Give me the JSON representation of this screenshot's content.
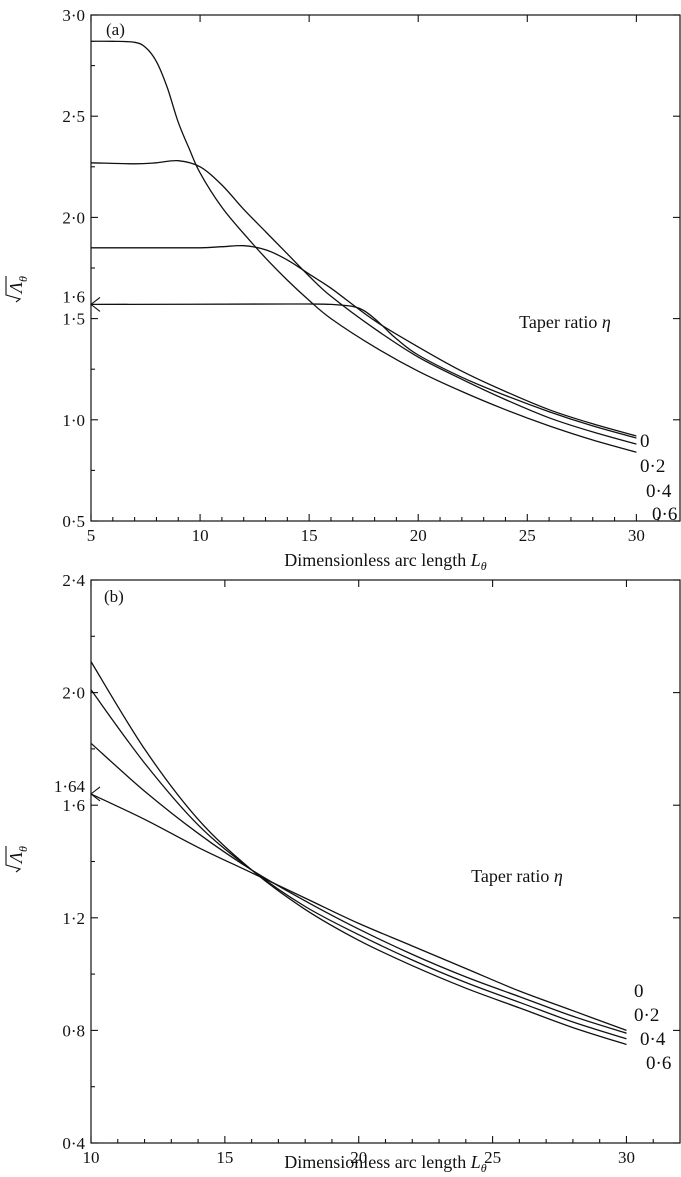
{
  "chart_data": [
    {
      "panel_label": "(a)",
      "type": "line",
      "xlabel": "Dimensionless arc length",
      "xlabel_symbol": "L",
      "xlabel_subscript": "θ",
      "ylabel_symbol": "Λ",
      "ylabel_subscript": "θ",
      "xlim": [
        5,
        32
      ],
      "ylim": [
        0.5,
        3.0
      ],
      "xticks": [
        5,
        10,
        15,
        20,
        25,
        30
      ],
      "xtick_labels": [
        "5",
        "10",
        "15",
        "20",
        "25",
        "30"
      ],
      "yticks": [
        0.5,
        1.0,
        1.5,
        2.0,
        2.5,
        3.0
      ],
      "ytick_labels": [
        "0·5",
        "1·0",
        "1·5",
        "2·0",
        "2·5",
        "3·0"
      ],
      "marker": {
        "label": "1·6",
        "value": 1.57
      },
      "annotation": {
        "text": "Taper ratio",
        "symbol": "η"
      },
      "series": [
        {
          "name": "0",
          "x": [
            5,
            14,
            15,
            16,
            17,
            17.5,
            18,
            18.5,
            19,
            20,
            22,
            24,
            26,
            28,
            30
          ],
          "y": [
            1.57,
            1.572,
            1.572,
            1.57,
            1.56,
            1.54,
            1.5,
            1.45,
            1.4,
            1.32,
            1.21,
            1.12,
            1.04,
            0.97,
            0.91
          ]
        },
        {
          "name": "0·2",
          "x": [
            5,
            8,
            10,
            11,
            12,
            13,
            14,
            15,
            16,
            18,
            20,
            22,
            24,
            26,
            28,
            30
          ],
          "y": [
            1.85,
            1.85,
            1.85,
            1.855,
            1.86,
            1.84,
            1.79,
            1.72,
            1.65,
            1.49,
            1.36,
            1.24,
            1.14,
            1.05,
            0.98,
            0.92
          ]
        },
        {
          "name": "0·4",
          "x": [
            5,
            7,
            8,
            9,
            10,
            11,
            12,
            13,
            14,
            15,
            16,
            18,
            20,
            22,
            24,
            26,
            28,
            30
          ],
          "y": [
            2.27,
            2.265,
            2.27,
            2.28,
            2.25,
            2.16,
            2.04,
            1.93,
            1.82,
            1.71,
            1.61,
            1.45,
            1.31,
            1.2,
            1.1,
            1.01,
            0.94,
            0.88
          ]
        },
        {
          "name": "0·6",
          "x": [
            5,
            6,
            7,
            7.5,
            8,
            8.5,
            9,
            9.5,
            10,
            11,
            12,
            13,
            14,
            15,
            16,
            18,
            20,
            22,
            24,
            26,
            28,
            30
          ],
          "y": [
            2.87,
            2.87,
            2.865,
            2.84,
            2.77,
            2.64,
            2.47,
            2.34,
            2.22,
            2.05,
            1.92,
            1.8,
            1.69,
            1.59,
            1.5,
            1.36,
            1.24,
            1.14,
            1.05,
            0.97,
            0.9,
            0.84
          ]
        }
      ],
      "end_labels": [
        "0",
        "0·2",
        "0·4",
        "0·6"
      ]
    },
    {
      "panel_label": "(b)",
      "type": "line",
      "xlabel": "Dimensionless arc length",
      "xlabel_symbol": "L",
      "xlabel_subscript": "θ",
      "ylabel_symbol": "Λ",
      "ylabel_subscript": "θ",
      "xlim": [
        10,
        32
      ],
      "ylim": [
        0.4,
        2.4
      ],
      "xticks": [
        10,
        15,
        20,
        25,
        30
      ],
      "xtick_labels": [
        "10",
        "15",
        "20",
        "25",
        "30"
      ],
      "yticks": [
        0.4,
        0.8,
        1.2,
        1.6,
        2.0,
        2.4
      ],
      "ytick_labels": [
        "0·4",
        "0·8",
        "1·2",
        "1·6",
        "2·0",
        "2·4"
      ],
      "marker": {
        "label": "1·64",
        "value": 1.64
      },
      "annotation": {
        "text": "Taper ratio",
        "symbol": "η"
      },
      "series": [
        {
          "name": "0",
          "x": [
            10,
            12,
            14,
            16,
            18,
            20,
            22,
            24,
            26,
            28,
            30
          ],
          "y": [
            1.64,
            1.55,
            1.45,
            1.36,
            1.27,
            1.18,
            1.1,
            1.02,
            0.94,
            0.87,
            0.8
          ]
        },
        {
          "name": "0·2",
          "x": [
            10,
            12,
            14,
            16,
            18,
            20,
            22,
            24,
            26,
            28,
            30
          ],
          "y": [
            1.82,
            1.65,
            1.5,
            1.37,
            1.26,
            1.16,
            1.07,
            0.99,
            0.92,
            0.85,
            0.79
          ]
        },
        {
          "name": "0·4",
          "x": [
            10,
            12,
            14,
            16,
            18,
            20,
            22,
            24,
            26,
            28,
            30
          ],
          "y": [
            2.01,
            1.75,
            1.53,
            1.37,
            1.24,
            1.14,
            1.05,
            0.97,
            0.9,
            0.83,
            0.77
          ]
        },
        {
          "name": "0·6",
          "x": [
            10,
            12,
            14,
            16,
            18,
            20,
            22,
            24,
            26,
            28,
            30
          ],
          "y": [
            2.11,
            1.8,
            1.55,
            1.37,
            1.23,
            1.12,
            1.03,
            0.95,
            0.88,
            0.81,
            0.75
          ]
        }
      ],
      "end_labels": [
        "0",
        "0·2",
        "0·4",
        "0·6"
      ]
    }
  ]
}
